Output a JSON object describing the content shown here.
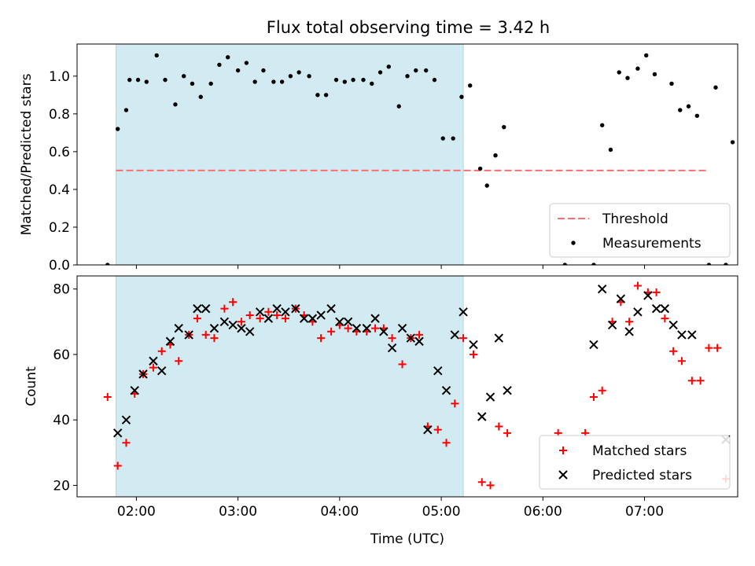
{
  "title": "Flux total observing time = 3.42 h",
  "colors": {
    "shade": "#add8e6",
    "threshold": "#ff6f6f",
    "measurement": "#000000",
    "matched": "#ff0000",
    "predicted": "#000000"
  },
  "chart_data": [
    {
      "type": "scatter",
      "ylabel": "Matched/Predicted stars",
      "xlim": [
        "01:25",
        "07:55"
      ],
      "ylim": [
        0,
        1.17
      ],
      "x_ticks": [
        "02:00",
        "03:00",
        "04:00",
        "05:00",
        "06:00",
        "07:00"
      ],
      "y_ticks": [
        "0.0",
        "0.2",
        "0.4",
        "0.6",
        "0.8",
        "1.0"
      ],
      "shaded_interval": [
        "01:48",
        "05:13"
      ],
      "threshold": {
        "name": "Threshold",
        "value": 0.5,
        "style": "dashed",
        "x_range": [
          "01:48",
          "07:37"
        ]
      },
      "legend": {
        "position": "lower right",
        "entries": [
          "Threshold",
          "Measurements"
        ]
      },
      "series": [
        {
          "name": "Measurements",
          "marker": "dot",
          "points": [
            [
              "01:43",
              0.0
            ],
            [
              "01:49",
              0.72
            ],
            [
              "01:54",
              0.82
            ],
            [
              "01:56",
              0.98
            ],
            [
              "02:01",
              0.98
            ],
            [
              "02:06",
              0.97
            ],
            [
              "02:12",
              1.11
            ],
            [
              "02:17",
              0.98
            ],
            [
              "02:23",
              0.85
            ],
            [
              "02:28",
              1.0
            ],
            [
              "02:33",
              0.96
            ],
            [
              "02:38",
              0.89
            ],
            [
              "02:44",
              0.96
            ],
            [
              "02:49",
              1.06
            ],
            [
              "02:54",
              1.1
            ],
            [
              "03:00",
              1.03
            ],
            [
              "03:05",
              1.07
            ],
            [
              "03:10",
              0.97
            ],
            [
              "03:15",
              1.03
            ],
            [
              "03:21",
              0.97
            ],
            [
              "03:26",
              0.97
            ],
            [
              "03:31",
              1.0
            ],
            [
              "03:36",
              1.02
            ],
            [
              "03:42",
              1.0
            ],
            [
              "03:47",
              0.9
            ],
            [
              "03:52",
              0.9
            ],
            [
              "03:58",
              0.98
            ],
            [
              "04:03",
              0.97
            ],
            [
              "04:08",
              0.98
            ],
            [
              "04:14",
              0.98
            ],
            [
              "04:19",
              0.96
            ],
            [
              "04:24",
              1.02
            ],
            [
              "04:29",
              1.05
            ],
            [
              "04:35",
              0.84
            ],
            [
              "04:40",
              1.0
            ],
            [
              "04:45",
              1.03
            ],
            [
              "04:51",
              1.03
            ],
            [
              "04:56",
              0.98
            ],
            [
              "05:01",
              0.67
            ],
            [
              "05:07",
              0.67
            ],
            [
              "05:12",
              0.89
            ],
            [
              "05:17",
              0.95
            ],
            [
              "05:23",
              0.51
            ],
            [
              "05:27",
              0.42
            ],
            [
              "05:32",
              0.58
            ],
            [
              "05:37",
              0.73
            ],
            [
              "06:13",
              0.0
            ],
            [
              "06:30",
              0.0
            ],
            [
              "06:35",
              0.74
            ],
            [
              "06:40",
              0.61
            ],
            [
              "06:45",
              1.02
            ],
            [
              "06:50",
              0.99
            ],
            [
              "06:56",
              1.04
            ],
            [
              "07:01",
              1.11
            ],
            [
              "07:06",
              1.01
            ],
            [
              "07:16",
              0.96
            ],
            [
              "07:21",
              0.82
            ],
            [
              "07:26",
              0.84
            ],
            [
              "07:31",
              0.79
            ],
            [
              "07:38",
              0.0
            ],
            [
              "07:42",
              0.94
            ],
            [
              "07:48",
              0.0
            ],
            [
              "07:52",
              0.65
            ]
          ]
        }
      ]
    },
    {
      "type": "scatter",
      "xlabel": "Time (UTC)",
      "ylabel": "Count",
      "xlim": [
        "01:25",
        "07:55"
      ],
      "ylim": [
        16.5,
        84
      ],
      "x_ticks": [
        "02:00",
        "03:00",
        "04:00",
        "05:00",
        "06:00",
        "07:00"
      ],
      "y_ticks": [
        "20",
        "40",
        "60",
        "80"
      ],
      "shaded_interval": [
        "01:48",
        "05:13"
      ],
      "legend": {
        "position": "lower right",
        "entries": [
          "Matched stars",
          "Predicted stars"
        ]
      },
      "series": [
        {
          "name": "Matched stars",
          "marker": "plus",
          "points": [
            [
              "01:43",
              47
            ],
            [
              "01:49",
              26
            ],
            [
              "01:54",
              33
            ],
            [
              "01:59",
              48
            ],
            [
              "02:04",
              54
            ],
            [
              "02:10",
              56
            ],
            [
              "02:15",
              61
            ],
            [
              "02:20",
              63
            ],
            [
              "02:25",
              58
            ],
            [
              "02:31",
              66
            ],
            [
              "02:36",
              71
            ],
            [
              "02:41",
              66
            ],
            [
              "02:46",
              65
            ],
            [
              "02:52",
              74
            ],
            [
              "02:57",
              76
            ],
            [
              "03:02",
              70
            ],
            [
              "03:07",
              72
            ],
            [
              "03:13",
              71
            ],
            [
              "03:18",
              73
            ],
            [
              "03:23",
              72
            ],
            [
              "03:28",
              71
            ],
            [
              "03:34",
              74
            ],
            [
              "03:39",
              72
            ],
            [
              "03:44",
              70
            ],
            [
              "03:49",
              65
            ],
            [
              "03:55",
              67
            ],
            [
              "04:00",
              69
            ],
            [
              "04:05",
              68
            ],
            [
              "04:10",
              67
            ],
            [
              "04:16",
              67
            ],
            [
              "04:21",
              68
            ],
            [
              "04:26",
              68
            ],
            [
              "04:31",
              65
            ],
            [
              "04:37",
              57
            ],
            [
              "04:42",
              65
            ],
            [
              "04:47",
              66
            ],
            [
              "04:52",
              38
            ],
            [
              "04:58",
              37
            ],
            [
              "05:03",
              33
            ],
            [
              "05:08",
              45
            ],
            [
              "05:13",
              65
            ],
            [
              "05:19",
              60
            ],
            [
              "05:24",
              21
            ],
            [
              "05:29",
              20
            ],
            [
              "05:34",
              38
            ],
            [
              "05:39",
              36
            ],
            [
              "06:09",
              36
            ],
            [
              "06:25",
              36
            ],
            [
              "06:30",
              47
            ],
            [
              "06:35",
              49
            ],
            [
              "06:41",
              70
            ],
            [
              "06:46",
              76
            ],
            [
              "06:51",
              70
            ],
            [
              "06:56",
              81
            ],
            [
              "07:02",
              79
            ],
            [
              "07:07",
              79
            ],
            [
              "07:12",
              71
            ],
            [
              "07:17",
              61
            ],
            [
              "07:22",
              58
            ],
            [
              "07:28",
              52
            ],
            [
              "07:33",
              52
            ],
            [
              "07:38",
              62
            ],
            [
              "07:43",
              62
            ],
            [
              "07:48",
              22
            ]
          ]
        },
        {
          "name": "Predicted stars",
          "marker": "x",
          "points": [
            [
              "01:49",
              36
            ],
            [
              "01:54",
              40
            ],
            [
              "01:59",
              49
            ],
            [
              "02:04",
              54
            ],
            [
              "02:10",
              58
            ],
            [
              "02:15",
              55
            ],
            [
              "02:20",
              64
            ],
            [
              "02:25",
              68
            ],
            [
              "02:31",
              66
            ],
            [
              "02:36",
              74
            ],
            [
              "02:41",
              74
            ],
            [
              "02:46",
              68
            ],
            [
              "02:52",
              70
            ],
            [
              "02:57",
              69
            ],
            [
              "03:02",
              68
            ],
            [
              "03:07",
              67
            ],
            [
              "03:13",
              73
            ],
            [
              "03:18",
              71
            ],
            [
              "03:23",
              74
            ],
            [
              "03:28",
              73
            ],
            [
              "03:34",
              74
            ],
            [
              "03:39",
              71
            ],
            [
              "03:44",
              71
            ],
            [
              "03:49",
              72
            ],
            [
              "03:55",
              74
            ],
            [
              "04:00",
              70
            ],
            [
              "04:05",
              70
            ],
            [
              "04:10",
              68
            ],
            [
              "04:16",
              68
            ],
            [
              "04:21",
              71
            ],
            [
              "04:26",
              67
            ],
            [
              "04:31",
              62
            ],
            [
              "04:37",
              68
            ],
            [
              "04:42",
              65
            ],
            [
              "04:47",
              64
            ],
            [
              "04:52",
              37
            ],
            [
              "04:58",
              55
            ],
            [
              "05:03",
              49
            ],
            [
              "05:08",
              66
            ],
            [
              "05:13",
              73
            ],
            [
              "05:19",
              63
            ],
            [
              "05:24",
              41
            ],
            [
              "05:29",
              47
            ],
            [
              "05:34",
              65
            ],
            [
              "05:39",
              49
            ],
            [
              "06:30",
              63
            ],
            [
              "06:35",
              80
            ],
            [
              "06:41",
              69
            ],
            [
              "06:46",
              77
            ],
            [
              "06:51",
              67
            ],
            [
              "06:56",
              73
            ],
            [
              "07:02",
              78
            ],
            [
              "07:07",
              74
            ],
            [
              "07:12",
              74
            ],
            [
              "07:17",
              69
            ],
            [
              "07:22",
              66
            ],
            [
              "07:28",
              66
            ],
            [
              "07:48",
              34
            ]
          ]
        }
      ]
    }
  ]
}
